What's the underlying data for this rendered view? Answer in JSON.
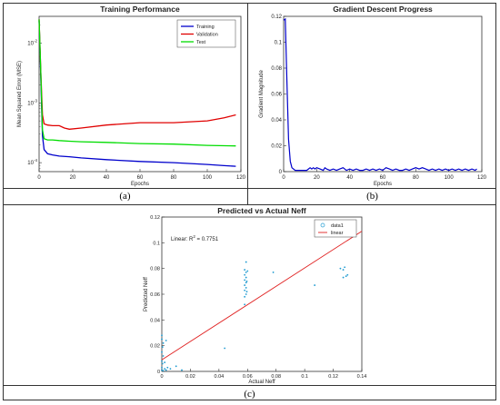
{
  "captions": {
    "a": "(a)",
    "b": "(b)",
    "c": "(c)"
  },
  "chart_data": [
    {
      "type": "line",
      "title": "Training Performance",
      "xlabel": "Epochs",
      "ylabel": "Mean Squared Error (MSE)",
      "yscale": "log",
      "xlim": [
        0,
        120
      ],
      "ylim_exp": [
        -4.15,
        -1.55
      ],
      "x_ticks": [
        0,
        20,
        40,
        60,
        80,
        100,
        120
      ],
      "y_ticks": [
        {
          "exp": -2,
          "label_base": "10",
          "label_exp": "-2"
        },
        {
          "exp": -3,
          "label_base": "10",
          "label_exp": "-3"
        },
        {
          "exp": -4,
          "label_base": "10",
          "label_exp": "-4"
        }
      ],
      "legend": "top-right",
      "grid": false,
      "series": [
        {
          "name": "Training",
          "color": "#0000cc",
          "x": [
            0,
            1,
            2,
            3,
            5,
            8,
            12,
            18,
            25,
            40,
            60,
            80,
            100,
            110,
            117
          ],
          "logy": [
            -1.62,
            -2.6,
            -3.55,
            -3.78,
            -3.85,
            -3.87,
            -3.89,
            -3.9,
            -3.92,
            -3.95,
            -3.98,
            -4.0,
            -4.03,
            -4.05,
            -4.06
          ]
        },
        {
          "name": "Validation",
          "color": "#e00000",
          "x": [
            0,
            1,
            2,
            3,
            5,
            8,
            12,
            15,
            18,
            25,
            40,
            60,
            80,
            100,
            110,
            117
          ],
          "logy": [
            -1.6,
            -2.5,
            -3.2,
            -3.35,
            -3.37,
            -3.38,
            -3.38,
            -3.42,
            -3.44,
            -3.42,
            -3.37,
            -3.33,
            -3.33,
            -3.3,
            -3.25,
            -3.2
          ]
        },
        {
          "name": "Test",
          "color": "#00dd00",
          "x": [
            0,
            1,
            2,
            3,
            5,
            8,
            12,
            18,
            25,
            40,
            60,
            80,
            100,
            117
          ],
          "logy": [
            -1.6,
            -2.5,
            -3.45,
            -3.6,
            -3.62,
            -3.62,
            -3.63,
            -3.64,
            -3.65,
            -3.66,
            -3.68,
            -3.69,
            -3.71,
            -3.72
          ]
        }
      ]
    },
    {
      "type": "line",
      "title": "Gradient Descent Progress",
      "xlabel": "Epochs",
      "ylabel": "Gradient Magnitude",
      "xlim": [
        0,
        120
      ],
      "ylim": [
        0,
        0.12
      ],
      "x_ticks": [
        0,
        20,
        40,
        60,
        80,
        100,
        120
      ],
      "y_ticks": [
        0,
        0.02,
        0.04,
        0.06,
        0.08,
        0.1,
        0.12
      ],
      "y_tick_labels": [
        "0",
        "0.02",
        "0.04",
        "0.06",
        "0.08",
        "0.1",
        "0.12"
      ],
      "grid": false,
      "series": [
        {
          "color": "#0000cc",
          "x": [
            0,
            1,
            2,
            3,
            4,
            5,
            7,
            10,
            14,
            15,
            16,
            17,
            18,
            19,
            20,
            22,
            24,
            25,
            26,
            28,
            30,
            32,
            34,
            36,
            38,
            40,
            42,
            44,
            46,
            48,
            50,
            52,
            54,
            56,
            58,
            60,
            62,
            64,
            66,
            68,
            70,
            72,
            74,
            76,
            78,
            80,
            82,
            84,
            86,
            88,
            90,
            92,
            94,
            96,
            98,
            100,
            102,
            104,
            106,
            108,
            110,
            112,
            114,
            116,
            117
          ],
          "y": [
            0.117,
            0.118,
            0.07,
            0.025,
            0.008,
            0.003,
            0.001,
            0.001,
            0.001,
            0.002,
            0.003,
            0.002,
            0.003,
            0.002,
            0.003,
            0.002,
            0.001,
            0.003,
            0.002,
            0.001,
            0.002,
            0.001,
            0.002,
            0.003,
            0.001,
            0.002,
            0.001,
            0.002,
            0.001,
            0.001,
            0.002,
            0.001,
            0.002,
            0.001,
            0.002,
            0.001,
            0.003,
            0.002,
            0.001,
            0.002,
            0.001,
            0.001,
            0.002,
            0.001,
            0.002,
            0.003,
            0.002,
            0.003,
            0.002,
            0.001,
            0.002,
            0.001,
            0.002,
            0.001,
            0.002,
            0.001,
            0.002,
            0.001,
            0.002,
            0.001,
            0.002,
            0.001,
            0.002,
            0.001,
            0.002
          ]
        }
      ]
    },
    {
      "type": "scatter",
      "title": "Predicted vs Actual Neff",
      "xlabel": "Actual Neff",
      "ylabel": "Predicted Neff",
      "xlim": [
        0,
        0.14
      ],
      "ylim": [
        0,
        0.12
      ],
      "x_ticks": [
        0,
        0.02,
        0.04,
        0.06,
        0.08,
        0.1,
        0.12,
        0.14
      ],
      "x_tick_labels": [
        "0",
        "0.02",
        "0.04",
        "0.06",
        "0.08",
        "0.1",
        "0.12",
        "0.14"
      ],
      "y_ticks": [
        0,
        0.02,
        0.04,
        0.06,
        0.08,
        0.1,
        0.12
      ],
      "y_tick_labels": [
        "0",
        "0.02",
        "0.04",
        "0.06",
        "0.08",
        "0.1",
        "0.12"
      ],
      "annotation": {
        "prefix": "Linear: R",
        "sup": "2",
        "suffix": " = 0.7751"
      },
      "legend": "top-right",
      "series": [
        {
          "name": "data1",
          "color": "#1f9bd1",
          "points": [
            [
              0.0,
              0.001
            ],
            [
              0.0,
              0.003
            ],
            [
              0.0005,
              0.006
            ],
            [
              0.0,
              0.008
            ],
            [
              0.001,
              0.012
            ],
            [
              0.0,
              0.015
            ],
            [
              0.0005,
              0.019
            ],
            [
              0.001,
              0.022
            ],
            [
              0.0,
              0.025
            ],
            [
              0.0,
              0.028
            ],
            [
              0.001,
              0.0005
            ],
            [
              0.002,
              0.002
            ],
            [
              0.003,
              0.001
            ],
            [
              0.004,
              0.003
            ],
            [
              0.006,
              0.002
            ],
            [
              0.01,
              0.004
            ],
            [
              0.014,
              0.001
            ],
            [
              0.002,
              0.007
            ],
            [
              0.003,
              0.024
            ],
            [
              0.044,
              0.018
            ],
            [
              0.058,
              0.052
            ],
            [
              0.058,
              0.058
            ],
            [
              0.059,
              0.06
            ],
            [
              0.058,
              0.063
            ],
            [
              0.059,
              0.065
            ],
            [
              0.058,
              0.067
            ],
            [
              0.059,
              0.069
            ],
            [
              0.058,
              0.071
            ],
            [
              0.059,
              0.073
            ],
            [
              0.058,
              0.075
            ],
            [
              0.059,
              0.077
            ],
            [
              0.058,
              0.079
            ],
            [
              0.059,
              0.085
            ],
            [
              0.0595,
              0.062
            ],
            [
              0.0595,
              0.07
            ],
            [
              0.06,
              0.078
            ],
            [
              0.078,
              0.077
            ],
            [
              0.107,
              0.067
            ],
            [
              0.125,
              0.08
            ],
            [
              0.127,
              0.079
            ],
            [
              0.128,
              0.081
            ],
            [
              0.129,
              0.074
            ],
            [
              0.13,
              0.075
            ],
            [
              0.127,
              0.073
            ]
          ]
        },
        {
          "name": "linear",
          "color": "#e02020",
          "line": [
            [
              0,
              0.009
            ],
            [
              0.14,
              0.109
            ]
          ]
        }
      ]
    }
  ]
}
